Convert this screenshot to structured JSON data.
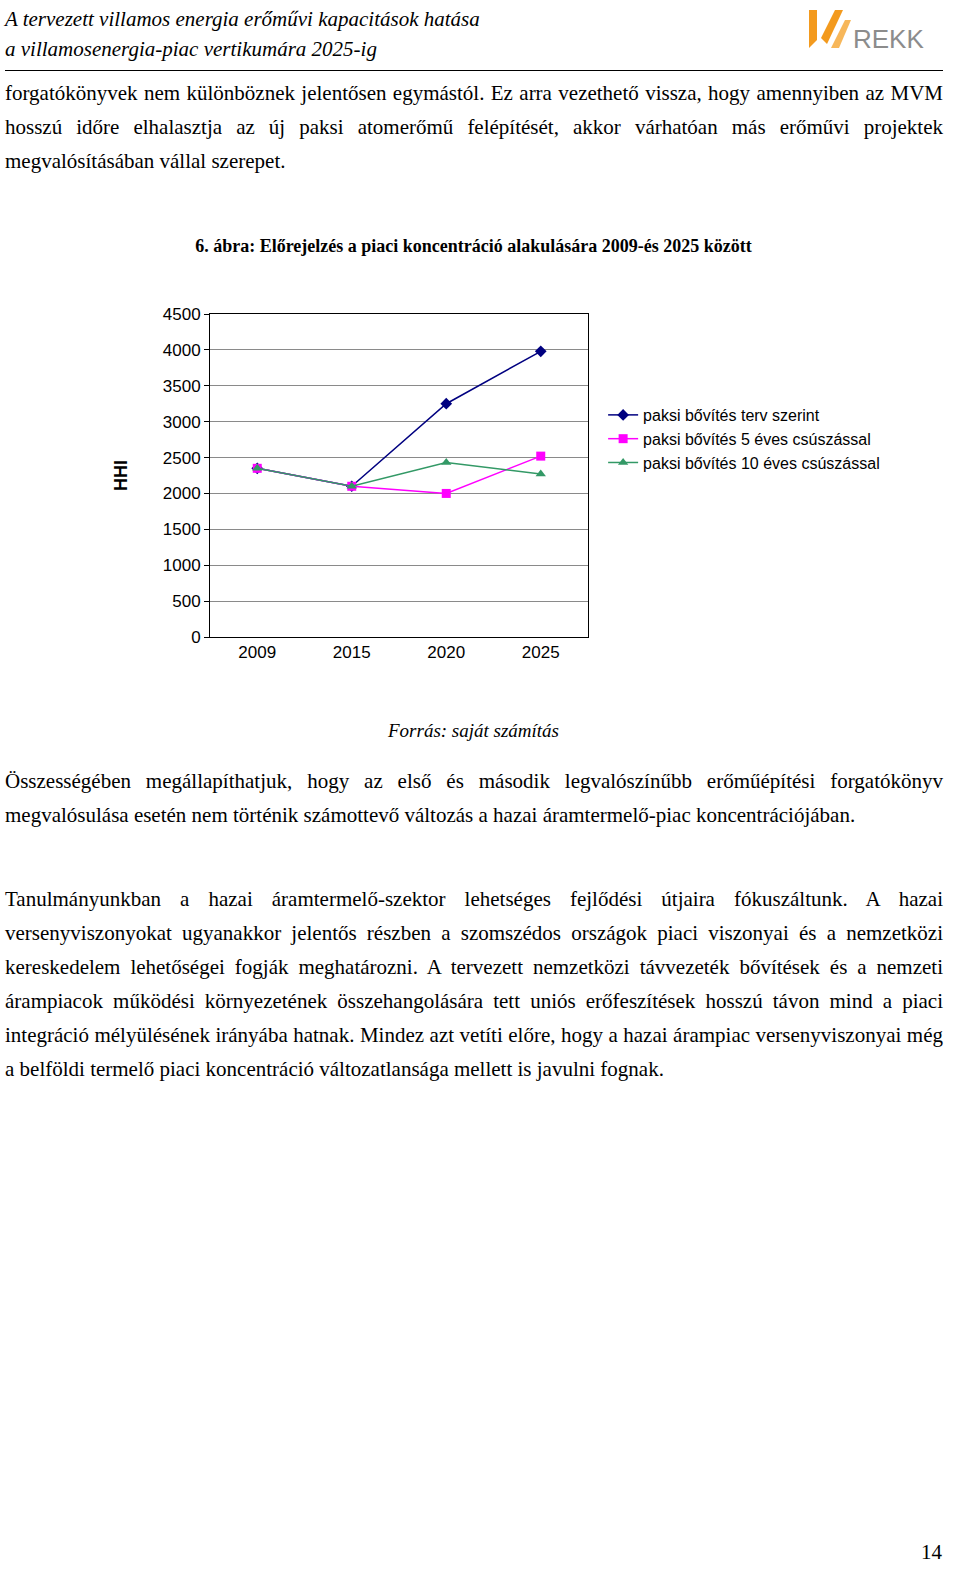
{
  "header": {
    "title_lines": [
      "A tervezett villamos energia erőművi kapacitások hatása",
      "a villamosenergia-piac vertikumára 2025-ig"
    ],
    "logo_text": "REKK"
  },
  "paragraphs_before": [
    "forgatókönyvek nem különböznek jelentősen egymástól. Ez arra vezethető vissza, hogy amennyiben az MVM hosszú időre elhalasztja az új paksi atomerőmű felépítését, akkor várhatóan más erőművi projektek megvalósításában vállal szerepet."
  ],
  "figure": {
    "caption": "6. ábra: Előrejelzés a piaci koncentráció alakulására 2009-és 2025 között",
    "source": "Forrás: saját számítás"
  },
  "chart_data": {
    "type": "line",
    "categories": [
      "2009",
      "2015",
      "2020",
      "2025"
    ],
    "y_label": "HHI",
    "ylim": [
      0,
      4500
    ],
    "yticks": [
      0,
      500,
      1000,
      1500,
      2000,
      2500,
      3000,
      3500,
      4000,
      4500
    ],
    "grid": true,
    "legend": "right",
    "series": [
      {
        "name": "paksi bővítés terv szerint",
        "color": "#000080",
        "marker": "diamond",
        "values": [
          2350,
          2100,
          3250,
          3980
        ]
      },
      {
        "name": "paksi bővítés 5 éves csúszással",
        "color": "#ff00ff",
        "marker": "square",
        "values": [
          2350,
          2100,
          2000,
          2520
        ]
      },
      {
        "name": "paksi bővítés 10 éves csúszással",
        "color": "#339966",
        "marker": "triangle-up",
        "values": [
          2350,
          2100,
          2430,
          2270
        ]
      }
    ]
  },
  "paragraphs_after": [
    "Összességében megállapíthatjuk, hogy az első és második legvalószínűbb erőműépítési forgatókönyv megvalósulása esetén nem történik számottevő változás a hazai áramtermelő-piac koncentrációjában.",
    "Tanulmányunkban a hazai áramtermelő-szektor lehetséges fejlődési útjaira fókuszáltunk. A hazai versenyviszonyokat ugyanakkor jelentős részben a szomszédos országok piaci viszonyai és a nemzetközi kereskedelem lehetőségei fogják meghatározni. A tervezett nemzetközi távvezeték bővítések és a nemzeti árampiacok működési környezetének összehangolására tett uniós erőfeszítések hosszú távon mind a piaci integráció mélyülésének irányába hatnak. Mindez azt vetíti előre, hogy a hazai árampiac versenyviszonyai még a belföldi termelő piaci koncentráció változatlansága mellett is javulni fognak."
  ],
  "page_number": "14"
}
